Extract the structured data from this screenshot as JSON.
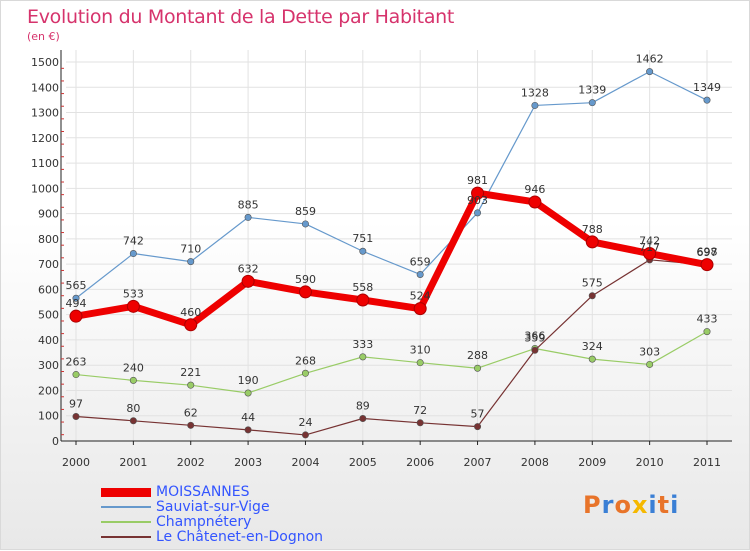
{
  "header": {
    "title": "Evolution du Montant de la Dette par Habitant",
    "unit": "(en €)"
  },
  "brand": {
    "logo_text": "Proxiti",
    "logo_colors": [
      "#e8742a",
      "#3a7fd5",
      "#e8742a",
      "#f5b800",
      "#3a7fd5",
      "#e8742a",
      "#3a7fd5"
    ]
  },
  "chart_data": {
    "type": "line",
    "title": "Evolution du Montant de la Dette par Habitant",
    "subtitle": "(en €)",
    "x": [
      "2000",
      "2001",
      "2002",
      "2003",
      "2004",
      "2005",
      "2006",
      "2007",
      "2008",
      "2009",
      "2010",
      "2011"
    ],
    "ylim": [
      0,
      1500
    ],
    "yticks": [
      0,
      100,
      200,
      300,
      400,
      500,
      600,
      700,
      800,
      900,
      1000,
      1100,
      1200,
      1300,
      1400,
      1500
    ],
    "grid": true,
    "legend_position": "bottom-left",
    "series": [
      {
        "name": "MOISSANNES",
        "color": "#ee0000",
        "emphasis": true,
        "values": [
          494,
          533,
          460,
          632,
          590,
          558,
          524,
          981,
          946,
          788,
          742,
          698
        ]
      },
      {
        "name": "Sauviat-sur-Vige",
        "color": "#6699cc",
        "values": [
          565,
          742,
          710,
          885,
          859,
          751,
          659,
          903,
          1328,
          1339,
          1462,
          1349
        ]
      },
      {
        "name": "Champnétery",
        "color": "#99cc66",
        "values": [
          263,
          240,
          221,
          190,
          268,
          333,
          310,
          288,
          366,
          324,
          303,
          433
        ]
      },
      {
        "name": "Le Châtenet-en-Dognon",
        "color": "#773333",
        "values": [
          97,
          80,
          62,
          44,
          24,
          89,
          72,
          57,
          359,
          575,
          717,
          697
        ]
      }
    ]
  }
}
